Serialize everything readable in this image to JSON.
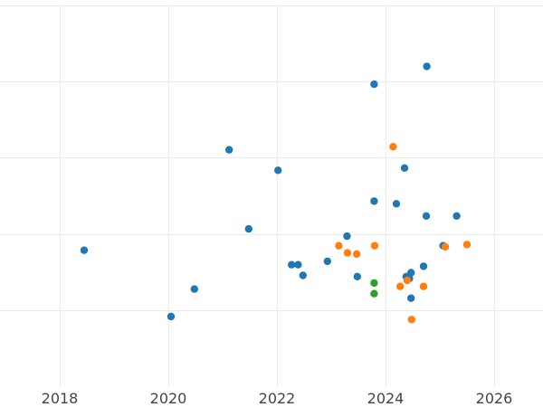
{
  "chart_data": {
    "type": "scatter",
    "title": "",
    "xlabel": "",
    "ylabel": "",
    "xlim": [
      2016.9,
      2026.9
    ],
    "ylim": [
      0,
      1000
    ],
    "x_ticks": [
      {
        "value": 2018,
        "label": "2018"
      },
      {
        "value": 2020,
        "label": "2020"
      },
      {
        "value": 2022,
        "label": "2022"
      },
      {
        "value": 2024,
        "label": "2024"
      },
      {
        "value": 2026,
        "label": "2026"
      }
    ],
    "y_grid": [
      200,
      400,
      600,
      800,
      1000
    ],
    "grid": true,
    "legend": "none",
    "series": [
      {
        "color": "#1f77b4",
        "points": [
          {
            "x": 2018.45,
            "y": 357
          },
          {
            "x": 2020.05,
            "y": 183
          },
          {
            "x": 2020.48,
            "y": 255
          },
          {
            "x": 2021.12,
            "y": 621
          },
          {
            "x": 2021.48,
            "y": 413
          },
          {
            "x": 2022.02,
            "y": 567
          },
          {
            "x": 2022.27,
            "y": 319
          },
          {
            "x": 2022.39,
            "y": 319
          },
          {
            "x": 2022.48,
            "y": 291
          },
          {
            "x": 2022.93,
            "y": 328
          },
          {
            "x": 2023.29,
            "y": 394
          },
          {
            "x": 2023.48,
            "y": 288
          },
          {
            "x": 2023.79,
            "y": 793
          },
          {
            "x": 2023.79,
            "y": 486
          },
          {
            "x": 2024.2,
            "y": 479
          },
          {
            "x": 2024.35,
            "y": 573
          },
          {
            "x": 2024.38,
            "y": 288
          },
          {
            "x": 2024.44,
            "y": 283
          },
          {
            "x": 2024.47,
            "y": 298
          },
          {
            "x": 2024.47,
            "y": 231
          },
          {
            "x": 2024.7,
            "y": 315
          },
          {
            "x": 2024.75,
            "y": 447
          },
          {
            "x": 2024.76,
            "y": 840
          },
          {
            "x": 2025.06,
            "y": 369
          },
          {
            "x": 2025.31,
            "y": 447
          }
        ]
      },
      {
        "color": "#ff7f0e",
        "points": [
          {
            "x": 2023.14,
            "y": 369
          },
          {
            "x": 2023.3,
            "y": 350
          },
          {
            "x": 2023.47,
            "y": 347
          },
          {
            "x": 2023.8,
            "y": 369
          },
          {
            "x": 2024.14,
            "y": 629
          },
          {
            "x": 2024.27,
            "y": 262
          },
          {
            "x": 2024.4,
            "y": 278
          },
          {
            "x": 2024.48,
            "y": 175
          },
          {
            "x": 2024.7,
            "y": 262
          },
          {
            "x": 2025.1,
            "y": 366
          },
          {
            "x": 2025.5,
            "y": 372
          }
        ]
      },
      {
        "color": "#2ca02c",
        "points": [
          {
            "x": 2023.79,
            "y": 271
          },
          {
            "x": 2023.79,
            "y": 243
          }
        ]
      }
    ]
  }
}
